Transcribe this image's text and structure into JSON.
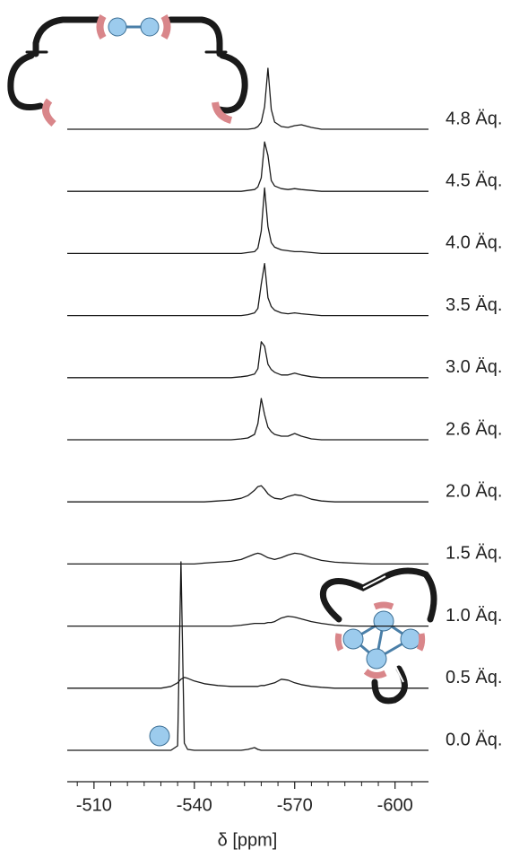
{
  "chart_data": {
    "type": "line",
    "x_label": "δ [ppm]",
    "xlim": [
      -502,
      -610
    ],
    "xticks": [
      -510,
      -540,
      -570,
      -600
    ],
    "xminorticks": [
      -505,
      -515,
      -520,
      -525,
      -530,
      -535,
      -545,
      -550,
      -555,
      -560,
      -565,
      -575,
      -580,
      -585,
      -590,
      -595,
      -605
    ],
    "x": [
      -502,
      -508,
      -514,
      -520,
      -526,
      -530,
      -533,
      -535,
      -536,
      -537,
      -538,
      -540,
      -543,
      -547,
      -551,
      -554,
      -556,
      -558,
      -559,
      -560,
      -561,
      -562,
      -563,
      -564,
      -566,
      -568,
      -570,
      -572,
      -575,
      -578,
      -582,
      -587,
      -593,
      -600,
      -606,
      -610
    ],
    "series": [
      {
        "name": "4.8 Äq.",
        "color": "#1a1a1a",
        "values": [
          0,
          0,
          0,
          0,
          0,
          0,
          0,
          0,
          0,
          0,
          0,
          0,
          0,
          0,
          0,
          0,
          0,
          1,
          3,
          8,
          25,
          68,
          22,
          8,
          3,
          2,
          4,
          5,
          2,
          0,
          0,
          0,
          0,
          0,
          0,
          0
        ]
      },
      {
        "name": "4.5 Äq.",
        "color": "#1a1a1a",
        "values": [
          0,
          0,
          0,
          0,
          0,
          0,
          0,
          0,
          0,
          0,
          0,
          0,
          0,
          0,
          0,
          0,
          1,
          2,
          5,
          15,
          55,
          40,
          12,
          6,
          3,
          2,
          3,
          2,
          1,
          0,
          0,
          0,
          0,
          0,
          0,
          0
        ]
      },
      {
        "name": "4.0 Äq.",
        "color": "#1a1a1a",
        "values": [
          0,
          0,
          0,
          0,
          0,
          0,
          0,
          0,
          0,
          0,
          0,
          0,
          0,
          0,
          0,
          0,
          1,
          2,
          6,
          25,
          73,
          30,
          12,
          7,
          4,
          3,
          2,
          2,
          1,
          0,
          0,
          0,
          0,
          0,
          0,
          0
        ]
      },
      {
        "name": "3.5 Äq.",
        "color": "#1a1a1a",
        "values": [
          0,
          0,
          0,
          0,
          0,
          0,
          0,
          0,
          0,
          0,
          0,
          0,
          0,
          0,
          0,
          0,
          1,
          3,
          8,
          35,
          58,
          20,
          10,
          6,
          3,
          2,
          3,
          2,
          1,
          0,
          0,
          0,
          0,
          0,
          0,
          0
        ]
      },
      {
        "name": "3.0 Äq.",
        "color": "#1a1a1a",
        "values": [
          0,
          0,
          0,
          0,
          0,
          0,
          0,
          0,
          0,
          0,
          0,
          0,
          0,
          0,
          0,
          1,
          2,
          4,
          10,
          40,
          35,
          15,
          9,
          6,
          3,
          3,
          5,
          3,
          1,
          0,
          0,
          0,
          0,
          0,
          0,
          0
        ]
      },
      {
        "name": "2.6 Äq.",
        "color": "#1a1a1a",
        "values": [
          0,
          0,
          0,
          0,
          0,
          0,
          0,
          0,
          0,
          0,
          0,
          0,
          0,
          0,
          0,
          1,
          2,
          6,
          18,
          46,
          28,
          14,
          9,
          6,
          4,
          4,
          7,
          4,
          1,
          0,
          0,
          0,
          0,
          0,
          0,
          0
        ]
      },
      {
        "name": "2.0 Äq.",
        "color": "#1a1a1a",
        "values": [
          0,
          0,
          0,
          0,
          0,
          0,
          0,
          0,
          0,
          0,
          0,
          0,
          0,
          1,
          2,
          4,
          7,
          13,
          17,
          18,
          14,
          9,
          6,
          4,
          3,
          6,
          8,
          7,
          3,
          1,
          0,
          0,
          0,
          0,
          0,
          0
        ]
      },
      {
        "name": "1.5 Äq.",
        "color": "#1a1a1a",
        "values": [
          0,
          0,
          0,
          0,
          0,
          0,
          0,
          0,
          0,
          0,
          0,
          0,
          1,
          2,
          3,
          5,
          8,
          11,
          12,
          11,
          9,
          7,
          6,
          5,
          7,
          10,
          12,
          11,
          7,
          4,
          2,
          1,
          0,
          0,
          0,
          0
        ]
      },
      {
        "name": "1.0 Äq.",
        "color": "#1a1a1a",
        "values": [
          0,
          0,
          0,
          0,
          0,
          0,
          0,
          0,
          0,
          0,
          0,
          0,
          0,
          0,
          0,
          1,
          2,
          3,
          3,
          3,
          3,
          4,
          4,
          5,
          9,
          11,
          10,
          8,
          5,
          3,
          1,
          0,
          0,
          0,
          0,
          0
        ]
      },
      {
        "name": "0.5 Äq.",
        "color": "#1a1a1a",
        "values": [
          0,
          0,
          0,
          0,
          0,
          0,
          2,
          6,
          10,
          12,
          11,
          8,
          5,
          3,
          2,
          2,
          2,
          2,
          2,
          3,
          3,
          4,
          5,
          6,
          10,
          9,
          6,
          4,
          2,
          1,
          0,
          0,
          0,
          0,
          0,
          0
        ]
      },
      {
        "name": "0.0 Äq.",
        "color": "#1a1a1a",
        "values": [
          0,
          0,
          0,
          0,
          0,
          0,
          0,
          5,
          210,
          8,
          1,
          0,
          0,
          0,
          0,
          0,
          1,
          3,
          1,
          0,
          0,
          0,
          0,
          0,
          0,
          0,
          0,
          0,
          0,
          0,
          0,
          0,
          0,
          0,
          0,
          0
        ]
      }
    ]
  }
}
